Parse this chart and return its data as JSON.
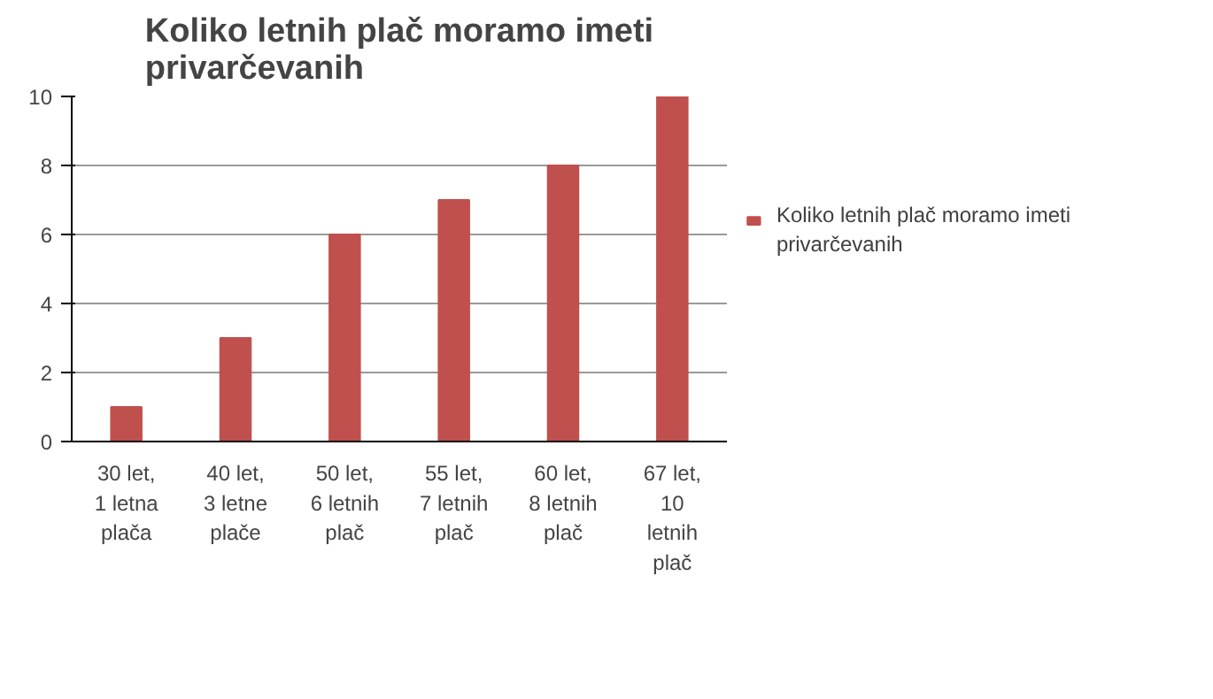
{
  "chart_data": {
    "type": "bar",
    "title": "Koliko letnih plač moramo imeti\nprivarčevanih",
    "categories": [
      "30 let,\n1 letna\nplača",
      "40 let,\n3 letne\nplače",
      "50 let,\n6 letnih\nplač",
      "55 let,\n7 letnih\nplač",
      "60 let,\n8 letnih\nplač",
      "67 let,\n10\nletnih\nplač"
    ],
    "series": [
      {
        "name": "Koliko letnih plač moramo imeti\nprivarčevanih",
        "color": "#c0504d",
        "values": [
          1,
          3,
          6,
          7,
          8,
          10
        ]
      }
    ],
    "ylim": [
      0,
      10
    ],
    "yticks": [
      0,
      2,
      4,
      6,
      8,
      10
    ],
    "grid": "y",
    "legend": "right"
  }
}
